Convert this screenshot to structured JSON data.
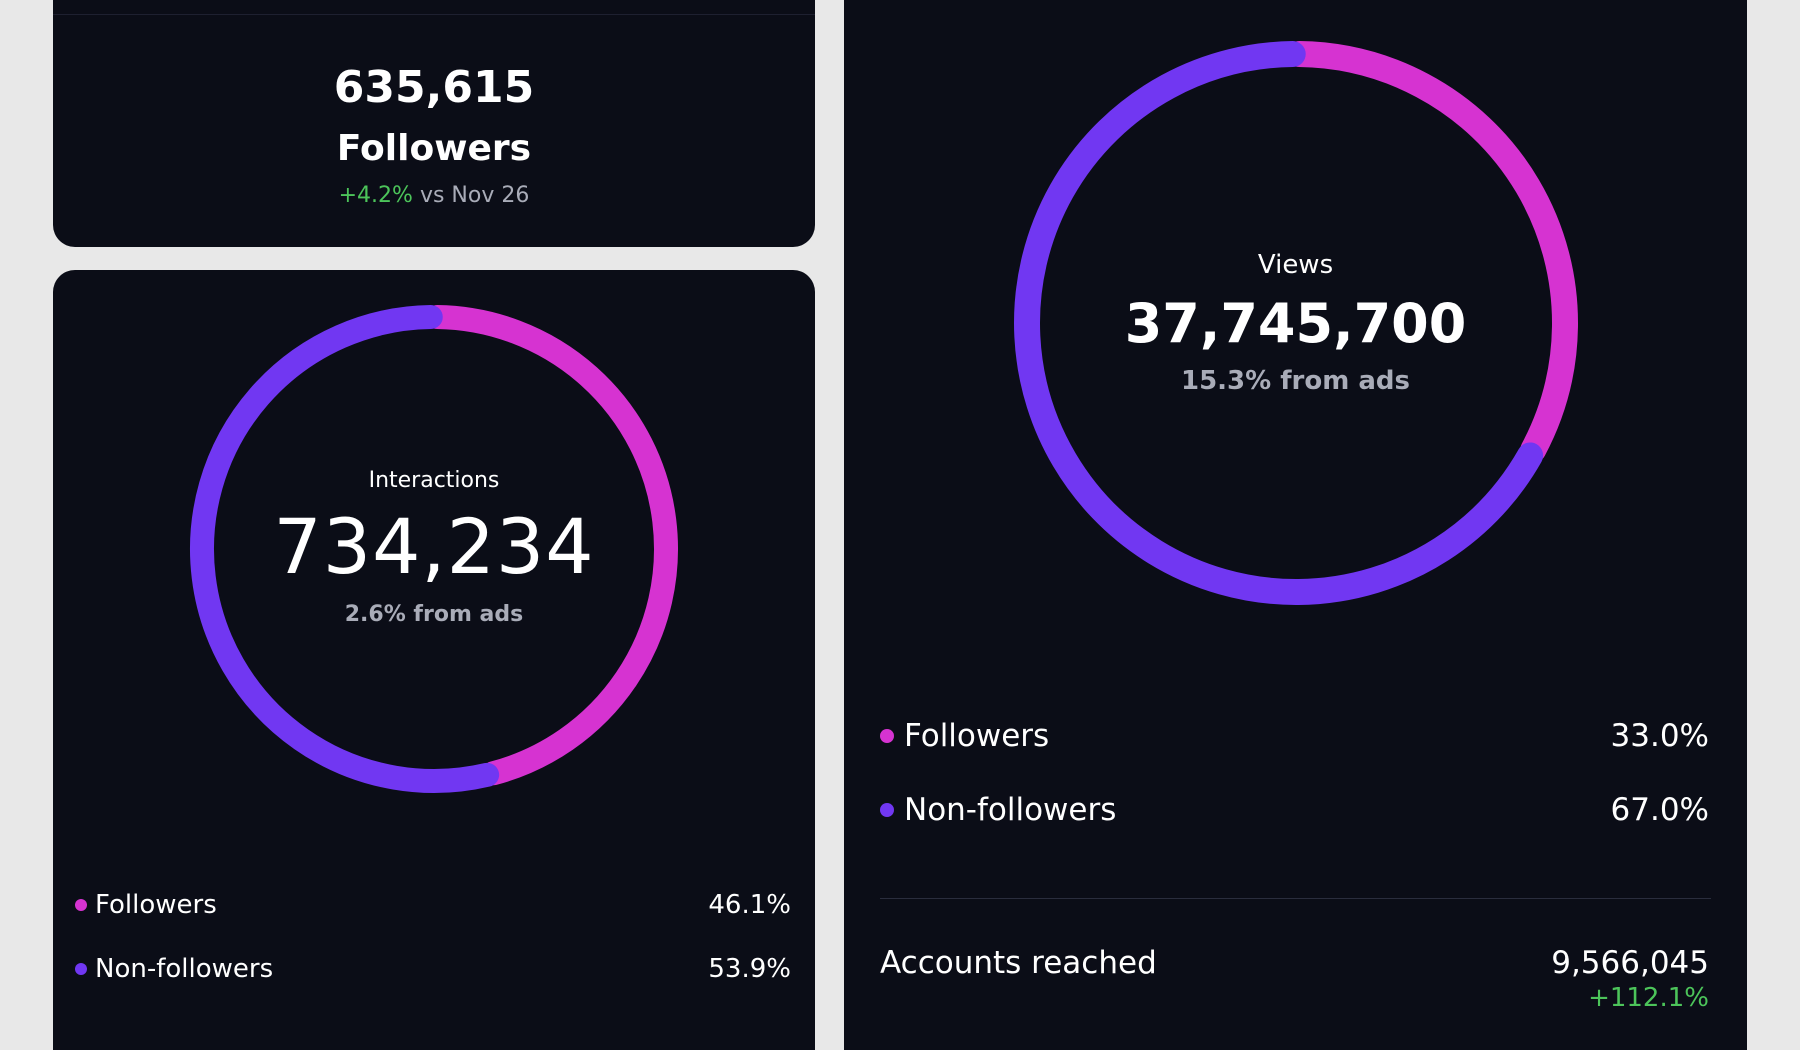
{
  "colors": {
    "followers": "#d633d1",
    "non_followers": "#7137f2",
    "positive": "#4cc45a",
    "card_bg": "#0b0d17",
    "muted": "#a9acb8"
  },
  "followers_card": {
    "count": "635,615",
    "label": "Followers",
    "change": "+4.2%",
    "comparison": "vs Nov 26"
  },
  "interactions_card": {
    "label": "Interactions",
    "value": "734,234",
    "ads_note": "2.6% from ads",
    "legend": [
      {
        "label": "Followers",
        "percent": "46.1%"
      },
      {
        "label": "Non-followers",
        "percent": "53.9%"
      }
    ]
  },
  "views_card": {
    "label": "Views",
    "value": "37,745,700",
    "ads_note": "15.3% from ads",
    "legend": [
      {
        "label": "Followers",
        "percent": "33.0%"
      },
      {
        "label": "Non-followers",
        "percent": "67.0%"
      }
    ],
    "accounts_reached": {
      "label": "Accounts reached",
      "value": "9,566,045",
      "change": "+112.1%"
    }
  },
  "chart_data": [
    {
      "type": "pie",
      "title": "Interactions",
      "categories": [
        "Followers",
        "Non-followers"
      ],
      "values": [
        46.1,
        53.9
      ]
    },
    {
      "type": "pie",
      "title": "Views",
      "categories": [
        "Followers",
        "Non-followers"
      ],
      "values": [
        33.0,
        67.0
      ]
    }
  ]
}
